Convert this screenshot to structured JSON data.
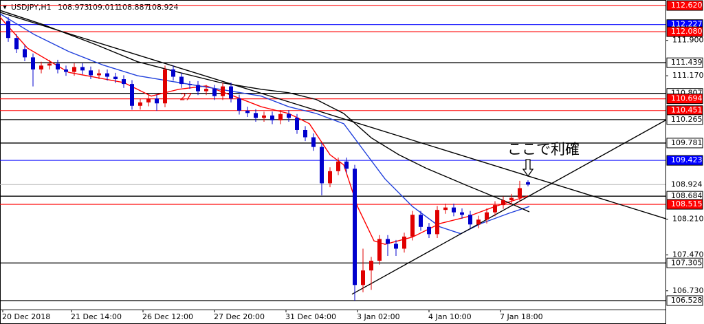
{
  "chart_data": {
    "type": "candlestick",
    "symbol": "USDJPY,H1",
    "bull_color": "#e00000",
    "bear_color": "#0000cd",
    "xlim": [
      0,
      242
    ],
    "ylim": [
      106.343,
      112.734
    ],
    "x": [
      3,
      6,
      9,
      12,
      15,
      18,
      21,
      24,
      27,
      30,
      33,
      36,
      39,
      42,
      45,
      48,
      51,
      54,
      57,
      60,
      63,
      66,
      69,
      72,
      75,
      78,
      81,
      84,
      87,
      90,
      93,
      96,
      99,
      102,
      105,
      108,
      111,
      114,
      117,
      120,
      123,
      126,
      129,
      132,
      135,
      138,
      141,
      144,
      147,
      150,
      153,
      156,
      159,
      162,
      165,
      168,
      171,
      174,
      177,
      180,
      183,
      186,
      189,
      192
    ],
    "ohlc": [
      [
        112.3,
        112.38,
        111.87,
        111.95
      ],
      [
        111.95,
        112.03,
        111.64,
        111.72
      ],
      [
        111.72,
        111.8,
        111.47,
        111.55
      ],
      [
        111.55,
        111.63,
        110.95,
        111.3
      ],
      [
        111.3,
        111.46,
        111.22,
        111.38
      ],
      [
        111.38,
        111.5,
        111.3,
        111.42
      ],
      [
        111.42,
        111.5,
        111.22,
        111.3
      ],
      [
        111.3,
        111.38,
        111.17,
        111.25
      ],
      [
        111.25,
        111.43,
        111.17,
        111.35
      ],
      [
        111.35,
        111.43,
        111.2,
        111.28
      ],
      [
        111.28,
        111.36,
        111.1,
        111.18
      ],
      [
        111.18,
        111.3,
        111.1,
        111.22
      ],
      [
        111.22,
        111.3,
        111.07,
        111.15
      ],
      [
        111.15,
        111.23,
        111.02,
        111.1
      ],
      [
        111.1,
        111.18,
        110.92,
        111.0
      ],
      [
        111.0,
        111.08,
        110.47,
        110.55
      ],
      [
        110.55,
        110.7,
        110.47,
        110.62
      ],
      [
        110.62,
        110.78,
        110.54,
        110.7
      ],
      [
        110.7,
        110.78,
        110.45,
        110.6
      ],
      [
        110.6,
        111.38,
        110.52,
        111.3
      ],
      [
        111.3,
        111.38,
        111.07,
        111.15
      ],
      [
        111.15,
        111.23,
        110.92,
        111.0
      ],
      [
        111.0,
        111.06,
        110.9,
        110.98
      ],
      [
        110.98,
        111.06,
        110.77,
        110.85
      ],
      [
        110.85,
        110.98,
        110.77,
        110.9
      ],
      [
        110.9,
        110.98,
        110.67,
        110.75
      ],
      [
        110.75,
        111.03,
        110.67,
        110.95
      ],
      [
        110.95,
        111.03,
        110.62,
        110.7
      ],
      [
        110.7,
        110.78,
        110.37,
        110.45
      ],
      [
        110.45,
        110.53,
        110.32,
        110.4
      ],
      [
        110.4,
        110.48,
        110.22,
        110.3
      ],
      [
        110.3,
        110.43,
        110.22,
        110.35
      ],
      [
        110.35,
        110.43,
        110.17,
        110.25
      ],
      [
        110.25,
        110.46,
        110.17,
        110.38
      ],
      [
        110.38,
        110.46,
        110.22,
        110.3
      ],
      [
        110.3,
        110.38,
        109.97,
        110.05
      ],
      [
        110.05,
        110.13,
        109.82,
        109.9
      ],
      [
        109.9,
        109.98,
        109.62,
        109.7
      ],
      [
        109.7,
        109.78,
        108.7,
        108.95
      ],
      [
        108.95,
        109.28,
        108.87,
        109.2
      ],
      [
        109.2,
        109.48,
        109.12,
        109.4
      ],
      [
        109.4,
        109.48,
        109.17,
        109.25
      ],
      [
        109.25,
        109.33,
        106.528,
        106.85
      ],
      [
        106.85,
        107.6,
        106.7,
        107.15
      ],
      [
        107.15,
        107.43,
        106.75,
        107.35
      ],
      [
        107.35,
        107.88,
        107.27,
        107.8
      ],
      [
        107.8,
        107.88,
        107.45,
        107.7
      ],
      [
        107.7,
        107.78,
        107.45,
        107.6
      ],
      [
        107.6,
        107.93,
        107.52,
        107.85
      ],
      [
        107.85,
        108.38,
        107.77,
        108.3
      ],
      [
        108.3,
        108.38,
        107.97,
        108.05
      ],
      [
        108.05,
        108.13,
        107.82,
        107.9
      ],
      [
        107.9,
        108.48,
        107.82,
        108.4
      ],
      [
        108.4,
        108.53,
        108.32,
        108.45
      ],
      [
        108.45,
        108.53,
        108.27,
        108.35
      ],
      [
        108.35,
        108.43,
        108.22,
        108.3
      ],
      [
        108.3,
        108.38,
        108.02,
        108.1
      ],
      [
        108.1,
        108.28,
        108.02,
        108.2
      ],
      [
        108.2,
        108.43,
        108.12,
        108.35
      ],
      [
        108.35,
        108.58,
        108.27,
        108.5
      ],
      [
        108.5,
        108.68,
        108.42,
        108.6
      ],
      [
        108.6,
        108.73,
        108.52,
        108.65
      ],
      [
        108.65,
        109.0,
        108.57,
        108.85
      ],
      [
        108.973,
        109.011,
        108.887,
        108.924
      ]
    ],
    "lines": [
      {
        "color": "#ff0000",
        "x": [
          0,
          10,
          25,
          45,
          55,
          65,
          75,
          85,
          95,
          105,
          112.5,
          120,
          125,
          130,
          136,
          140,
          150,
          160,
          170,
          180,
          192
        ],
        "y": [
          112.38,
          111.74,
          111.24,
          111.03,
          110.75,
          110.89,
          110.96,
          110.75,
          110.53,
          110.39,
          110.18,
          109.54,
          109.33,
          108.47,
          107.76,
          107.69,
          107.84,
          108.12,
          108.26,
          108.47,
          108.69
        ]
      },
      {
        "color": "#1f3fdc",
        "x": [
          0,
          12.5,
          25,
          37.5,
          50,
          65,
          80,
          95,
          105,
          115,
          125,
          132.5,
          140,
          150,
          160,
          167.5,
          175,
          185,
          192.5
        ],
        "y": [
          112.45,
          112.02,
          111.67,
          111.39,
          111.17,
          111.03,
          110.89,
          110.75,
          110.53,
          110.39,
          110.18,
          109.61,
          109.04,
          108.47,
          108.05,
          107.91,
          108.12,
          108.33,
          108.47
        ]
      },
      {
        "color": "#000000",
        "x": [
          0,
          15,
          35,
          50,
          65,
          80,
          95,
          105,
          115,
          125,
          135,
          145,
          155,
          170,
          185,
          192.5
        ],
        "y": [
          112.52,
          112.24,
          111.81,
          111.46,
          111.24,
          111.03,
          110.89,
          110.82,
          110.68,
          110.39,
          109.89,
          109.54,
          109.26,
          108.9,
          108.55,
          108.36
        ]
      },
      {
        "color": "#000000",
        "x": [
          0,
          242
        ],
        "y": [
          112.48,
          108.22
        ]
      },
      {
        "color": "#000000",
        "x": [
          128,
          242
        ],
        "y": [
          106.66,
          110.25
        ]
      }
    ],
    "levels": [
      {
        "value": 112.62,
        "label": "112.620",
        "color": "#ff0000"
      },
      {
        "value": 112.227,
        "label": "112.227",
        "color": "#0000ff"
      },
      {
        "value": 112.08,
        "label": "112.080",
        "color": "#ff0000"
      },
      {
        "value": 111.439,
        "label": "111.439",
        "color": "#000000"
      },
      {
        "value": 110.807,
        "label": "110.807",
        "color": "#000000"
      },
      {
        "value": 110.694,
        "label": "110.694",
        "color": "#ff0000"
      },
      {
        "value": 110.451,
        "label": "110.451",
        "color": "#ff0000"
      },
      {
        "value": 110.265,
        "label": "110.265",
        "color": "#000000"
      },
      {
        "value": 109.781,
        "label": "109.781",
        "color": "#000000"
      },
      {
        "value": 109.423,
        "label": "109.423",
        "color": "#0000ff"
      },
      {
        "value": 108.924,
        "label": "108.924",
        "color": "#c0c0c0"
      },
      {
        "value": 108.684,
        "label": "108.684",
        "color": "#000000"
      },
      {
        "value": 108.515,
        "label": "108.515",
        "color": "#ff0000"
      },
      {
        "value": 107.305,
        "label": "107.305",
        "color": "#000000"
      },
      {
        "value": 106.528,
        "label": "106.528",
        "color": "#000000"
      }
    ],
    "yticks": [
      {
        "value": 111.9,
        "label": "111.900"
      },
      {
        "value": 111.17,
        "label": "111.170"
      },
      {
        "value": 108.21,
        "label": "108.210"
      },
      {
        "value": 107.47,
        "label": "107.470"
      },
      {
        "value": 106.73,
        "label": "106.730"
      }
    ],
    "xticks": [
      {
        "value": 1,
        "label": "20 Dec 2018"
      },
      {
        "value": 26,
        "label": "21 Dec 14:00"
      },
      {
        "value": 52,
        "label": "26 Dec 12:00"
      },
      {
        "value": 78,
        "label": "27 Dec 20:00"
      },
      {
        "value": 104,
        "label": "31 Dec 04:00"
      },
      {
        "value": 130,
        "label": "3 Jan 02:00"
      },
      {
        "value": 156,
        "label": "4 Jan 10:00"
      },
      {
        "value": 182,
        "label": "7 Jan 18:00"
      }
    ],
    "annotations": [
      "ここで利確",
      "27"
    ]
  }
}
